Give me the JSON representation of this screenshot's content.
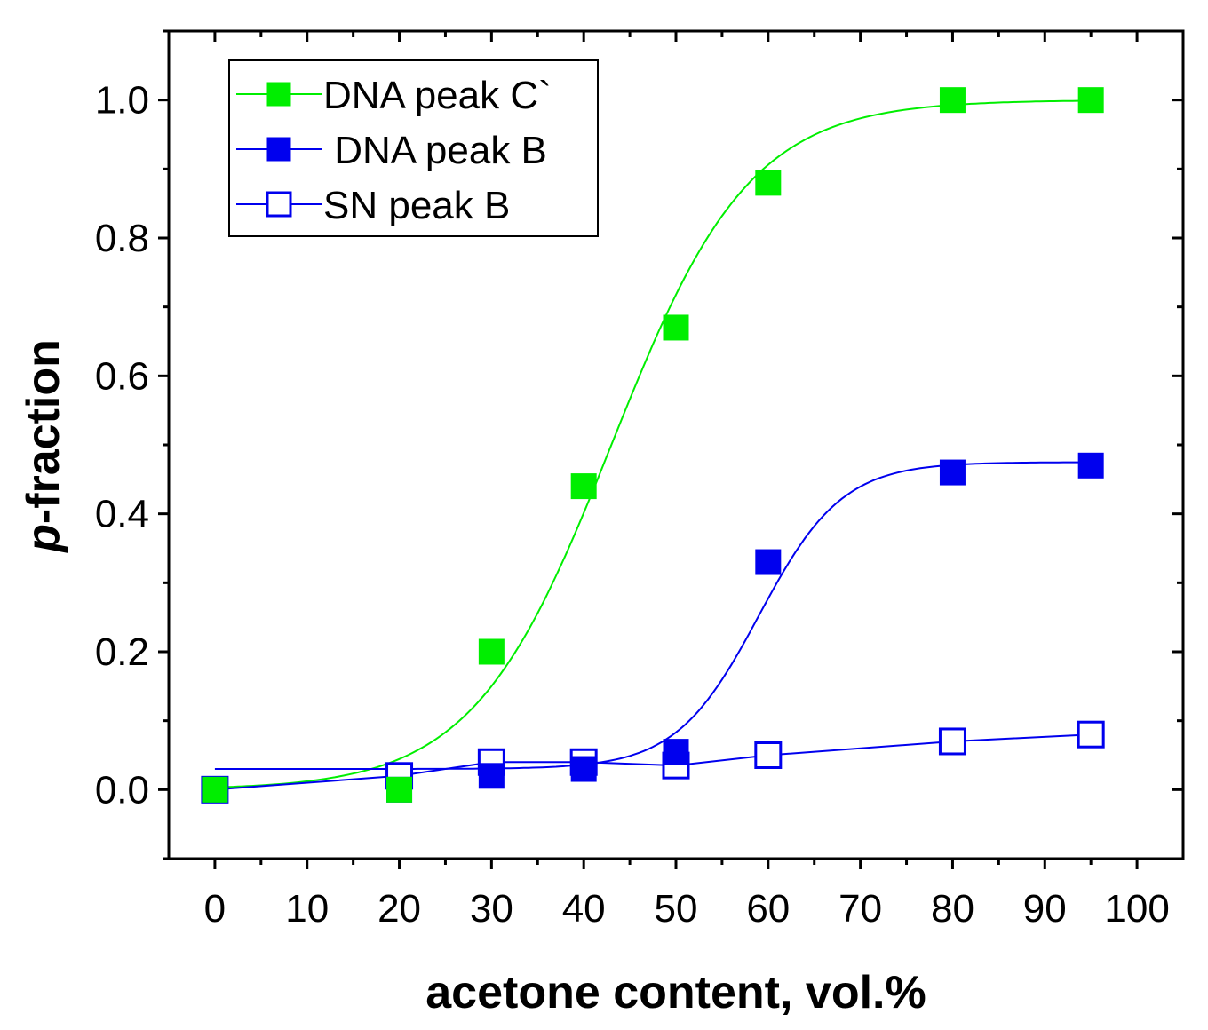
{
  "chart_data": {
    "type": "scatter",
    "title": "",
    "xlabel": "acetone content, vol.%",
    "ylabel_prefix": "p",
    "ylabel_suffix": "-fraction",
    "xlim": [
      -5,
      105
    ],
    "ylim": [
      -0.1,
      1.1
    ],
    "x_ticks": [
      0,
      10,
      20,
      30,
      40,
      50,
      60,
      70,
      80,
      90,
      100
    ],
    "x_tick_labels": [
      "0",
      "10",
      "20",
      "30",
      "40",
      "50",
      "60",
      "70",
      "80",
      "90",
      "100"
    ],
    "y_ticks": [
      0.0,
      0.2,
      0.4,
      0.6,
      0.8,
      1.0
    ],
    "y_tick_labels": [
      "0.0",
      "0.2",
      "0.4",
      "0.6",
      "0.8",
      "1.0"
    ],
    "grid": false,
    "legend_position": "top-left",
    "series": [
      {
        "name": "DNA peak C`",
        "color": "#00ee00",
        "marker": "filled-square",
        "x": [
          0,
          20,
          30,
          40,
          50,
          60,
          80,
          95
        ],
        "y": [
          0.0,
          0.0,
          0.2,
          0.44,
          0.67,
          0.88,
          1.0,
          1.0
        ],
        "fit": {
          "model": "sigmoid",
          "A1": 0,
          "A2": 1.0,
          "x0": 43,
          "dx": 7.5
        }
      },
      {
        "name": " DNA peak B",
        "color": "#0000ee",
        "marker": "filled-square",
        "x": [
          0,
          20,
          30,
          40,
          50,
          60,
          80,
          95
        ],
        "y": [
          0.0,
          0.0,
          0.02,
          0.03,
          0.055,
          0.33,
          0.46,
          0.47
        ],
        "fit": {
          "model": "sigmoid",
          "A1": 0.03,
          "A2": 0.475,
          "x0": 59,
          "dx": 4.5
        }
      },
      {
        "name": "SN peak B",
        "color": "#0000ee",
        "marker": "open-square",
        "x": [
          0,
          20,
          30,
          40,
          50,
          60,
          80,
          95
        ],
        "y": [
          0.0,
          0.02,
          0.04,
          0.04,
          0.035,
          0.05,
          0.07,
          0.08
        ],
        "fit": {
          "model": "connect"
        }
      }
    ]
  }
}
